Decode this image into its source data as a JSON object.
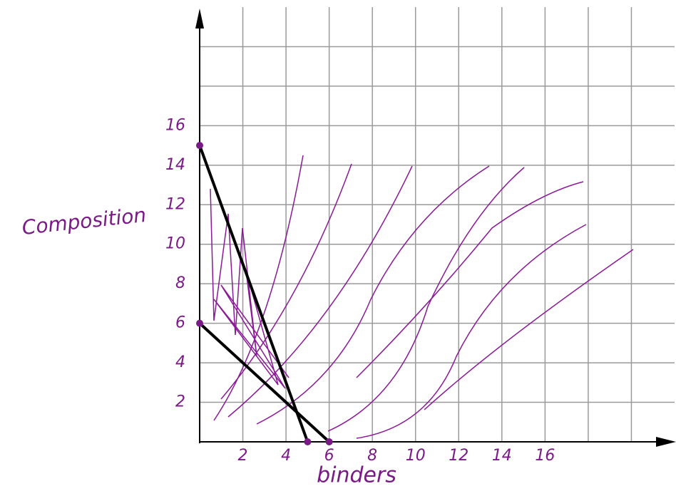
{
  "chart_data": {
    "type": "line",
    "xlabel": "binders",
    "ylabel": "Composition",
    "xlim": [
      0,
      22
    ],
    "ylim": [
      0,
      22
    ],
    "xticks": [
      2,
      4,
      6,
      8,
      10,
      12,
      14,
      16
    ],
    "yticks": [
      2,
      4,
      6,
      8,
      10,
      12,
      14,
      16
    ],
    "xgrid": [
      2,
      4,
      6,
      8,
      10,
      12,
      14,
      16,
      18,
      20
    ],
    "ygrid": [
      2,
      4,
      6,
      8,
      10,
      12,
      14,
      16,
      18,
      20
    ],
    "grid": true,
    "series": [
      {
        "color": "#000000",
        "x": [
          0,
          5
        ],
        "values": [
          15,
          0
        ]
      },
      {
        "color": "#000000",
        "x": [
          0,
          6
        ],
        "values": [
          6,
          0
        ]
      }
    ],
    "points": {
      "color": "#7a1a86",
      "x": [
        0,
        0,
        5,
        6
      ],
      "y": [
        15,
        6,
        0,
        0
      ]
    }
  }
}
